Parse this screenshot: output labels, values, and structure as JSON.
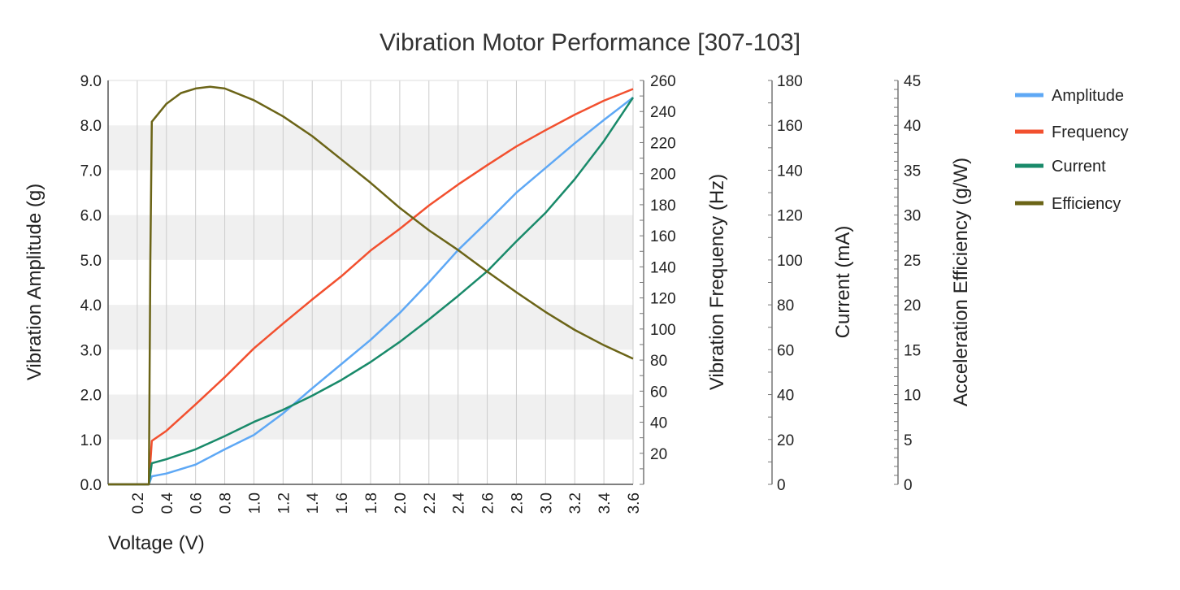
{
  "chart_data": {
    "type": "line",
    "title": "Vibration Motor Performance [307-103]",
    "xlabel": "Voltage (V)",
    "xlim": [
      0,
      3.6
    ],
    "xticks": [
      "0.2",
      "0.4",
      "0.6",
      "0.8",
      "1.0",
      "1.2",
      "1.4",
      "1.6",
      "1.8",
      "2.0",
      "2.2",
      "2.4",
      "2.6",
      "2.8",
      "3.0",
      "3.2",
      "3.4",
      "3.6"
    ],
    "grid": true,
    "legend_position": "right",
    "axes": [
      {
        "id": "amplitude",
        "label": "Vibration Amplitude (g)",
        "side": "left",
        "ylim": [
          0,
          9
        ],
        "ticks": [
          "0.0",
          "1.0",
          "2.0",
          "3.0",
          "4.0",
          "5.0",
          "6.0",
          "7.0",
          "8.0",
          "9.0"
        ],
        "tick_values": [
          0,
          1,
          2,
          3,
          4,
          5,
          6,
          7,
          8,
          9
        ]
      },
      {
        "id": "frequency",
        "label": "Vibration Frequency (Hz)",
        "side": "right",
        "ylim": [
          0,
          260
        ],
        "ticks": [
          "20",
          "40",
          "60",
          "80",
          "100",
          "120",
          "140",
          "160",
          "180",
          "200",
          "220",
          "240",
          "260"
        ],
        "tick_values": [
          20,
          40,
          60,
          80,
          100,
          120,
          140,
          160,
          180,
          200,
          220,
          240,
          260
        ]
      },
      {
        "id": "current",
        "label": "Current (mA)",
        "side": "right",
        "ylim": [
          0,
          180
        ],
        "ticks": [
          "0",
          "20",
          "40",
          "60",
          "80",
          "100",
          "120",
          "140",
          "160",
          "180"
        ],
        "tick_values": [
          0,
          20,
          40,
          60,
          80,
          100,
          120,
          140,
          160,
          180
        ]
      },
      {
        "id": "efficiency",
        "label": "Acceleration Efficiency (g/W)",
        "side": "right",
        "ylim": [
          0,
          45
        ],
        "ticks": [
          "0",
          "5",
          "10",
          "15",
          "20",
          "25",
          "30",
          "35",
          "40",
          "45"
        ],
        "tick_values": [
          0,
          5,
          10,
          15,
          20,
          25,
          30,
          35,
          40,
          45
        ]
      }
    ],
    "series": [
      {
        "name": "Amplitude",
        "axis": "amplitude",
        "color": "#5ea8f5",
        "x": [
          0,
          0.28,
          0.3,
          0.4,
          0.6,
          0.8,
          1.0,
          1.2,
          1.4,
          1.6,
          1.8,
          2.0,
          2.2,
          2.4,
          2.6,
          2.8,
          3.0,
          3.2,
          3.4,
          3.6
        ],
        "y": [
          0,
          0,
          0.18,
          0.24,
          0.44,
          0.78,
          1.1,
          1.58,
          2.14,
          2.68,
          3.22,
          3.82,
          4.5,
          5.22,
          5.85,
          6.5,
          7.05,
          7.6,
          8.12,
          8.62
        ]
      },
      {
        "name": "Frequency",
        "axis": "frequency",
        "color": "#f2502f",
        "x": [
          0,
          0.28,
          0.3,
          0.4,
          0.6,
          0.8,
          1.0,
          1.2,
          1.4,
          1.6,
          1.8,
          2.0,
          2.2,
          2.4,
          2.6,
          2.8,
          3.0,
          3.2,
          3.4,
          3.6
        ],
        "y": [
          0,
          0,
          28,
          34.5,
          51.5,
          69,
          87.5,
          103.5,
          119,
          134,
          150.5,
          164.5,
          179.5,
          193,
          205.5,
          217.5,
          228,
          238,
          247,
          254.5
        ]
      },
      {
        "name": "Current",
        "axis": "current",
        "color": "#198a6a",
        "x": [
          0,
          0.28,
          0.3,
          0.4,
          0.6,
          0.8,
          1.0,
          1.2,
          1.4,
          1.6,
          1.8,
          2.0,
          2.2,
          2.4,
          2.6,
          2.8,
          3.0,
          3.2,
          3.4,
          3.6
        ],
        "y": [
          0,
          0,
          9.4,
          11.2,
          15.6,
          21.5,
          27.8,
          33.2,
          39.5,
          46.5,
          54.5,
          63.5,
          73.5,
          84,
          95,
          108.3,
          121,
          136,
          153,
          172.4
        ]
      },
      {
        "name": "Efficiency",
        "axis": "efficiency",
        "color": "#6b6417",
        "x": [
          0,
          0.28,
          0.29,
          0.3,
          0.4,
          0.5,
          0.6,
          0.7,
          0.8,
          1.0,
          1.2,
          1.4,
          1.6,
          1.8,
          2.0,
          2.2,
          2.4,
          2.6,
          2.8,
          3.0,
          3.2,
          3.4,
          3.6
        ],
        "y": [
          0,
          0,
          25,
          40.4,
          42.4,
          43.6,
          44.1,
          44.3,
          44.1,
          42.8,
          41.0,
          38.8,
          36.2,
          33.6,
          30.8,
          28.3,
          26.1,
          23.7,
          21.4,
          19.2,
          17.2,
          15.5,
          14.0
        ]
      }
    ]
  }
}
